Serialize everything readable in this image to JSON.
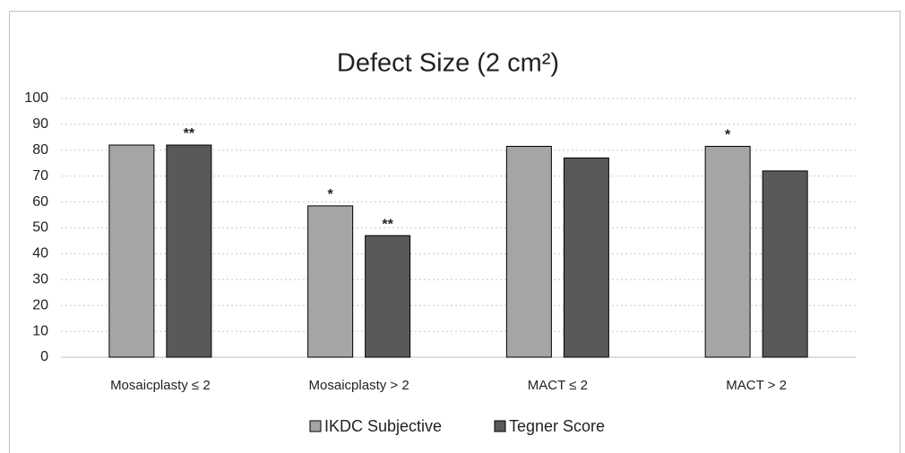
{
  "chart_data": {
    "type": "bar",
    "title": "Defect Size (2 cm²)",
    "categories": [
      "Mosaicplasty ≤ 2",
      "Mosaicplasty > 2",
      "MACT ≤ 2",
      "MACT > 2"
    ],
    "series": [
      {
        "name": "IKDC Subjective",
        "color": "#a5a5a5",
        "values": [
          82,
          58.5,
          81.5,
          81.5
        ],
        "annotations": [
          null,
          "*",
          null,
          "*"
        ]
      },
      {
        "name": "Tegner Score",
        "color": "#595959",
        "values": [
          82,
          47,
          77,
          72
        ],
        "annotations": [
          "**",
          "**",
          null,
          null
        ]
      }
    ],
    "ylim": [
      0,
      100
    ],
    "yticks": [
      0,
      10,
      20,
      30,
      40,
      50,
      60,
      70,
      80,
      90,
      100
    ],
    "grid": true,
    "legend": "bottom"
  }
}
